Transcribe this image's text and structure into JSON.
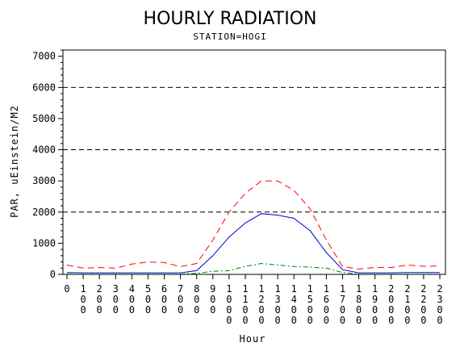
{
  "chart_data": {
    "type": "line",
    "title": "HOURLY RADIATION",
    "subtitle": "STATION=HOGI",
    "xlabel": "Hour",
    "ylabel": "PAR, uEinstein/M2",
    "ylim": [
      0,
      7200
    ],
    "yticks": [
      0,
      1000,
      2000,
      3000,
      4000,
      5000,
      6000,
      7000
    ],
    "reference_lines": [
      2000,
      4000,
      6000
    ],
    "x": [
      0,
      100,
      200,
      300,
      400,
      500,
      600,
      700,
      800,
      900,
      1000,
      1100,
      1200,
      1300,
      1400,
      1500,
      1600,
      1700,
      1800,
      1900,
      2000,
      2100,
      2200,
      2300
    ],
    "xticklabels": [
      "0",
      "100",
      "200",
      "300",
      "400",
      "500",
      "600",
      "700",
      "800",
      "900",
      "1000",
      "1100",
      "1200",
      "1300",
      "1400",
      "1500",
      "1600",
      "1700",
      "1800",
      "1900",
      "2000",
      "2100",
      "2200",
      "2300"
    ],
    "series": [
      {
        "color": "#ff0000",
        "dash": "dashed",
        "values": [
          300,
          200,
          220,
          200,
          330,
          400,
          380,
          250,
          350,
          1100,
          2000,
          2600,
          3000,
          3000,
          2700,
          2100,
          1100,
          250,
          170,
          220,
          220,
          300,
          260,
          270
        ]
      },
      {
        "color": "#0000cc",
        "dash": "solid",
        "values": [
          60,
          50,
          50,
          50,
          50,
          50,
          50,
          50,
          120,
          600,
          1200,
          1650,
          1950,
          1900,
          1800,
          1400,
          700,
          150,
          50,
          50,
          50,
          60,
          60,
          60
        ]
      },
      {
        "color": "#008000",
        "dash": "dashdot",
        "values": [
          10,
          10,
          10,
          10,
          10,
          10,
          10,
          10,
          30,
          100,
          120,
          260,
          350,
          300,
          250,
          230,
          200,
          60,
          10,
          10,
          10,
          10,
          10,
          10
        ]
      }
    ]
  }
}
